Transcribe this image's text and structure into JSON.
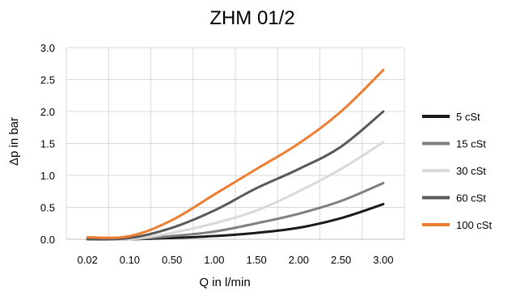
{
  "chart_data": {
    "type": "line",
    "title": "ZHM 01/2",
    "xlabel": "Q in l/min",
    "ylabel": "Δp in bar",
    "categories": [
      "0.02",
      "0.10",
      "0.50",
      "1.00",
      "1.50",
      "2.00",
      "2.50",
      "3.00"
    ],
    "y_ticks": [
      "0.0",
      "0.5",
      "1.0",
      "1.5",
      "2.0",
      "2.5",
      "3.0"
    ],
    "ylim": [
      0,
      3.0
    ],
    "grid": true,
    "legend_position": "right",
    "series": [
      {
        "name": "5 cSt",
        "color": "#1a1a1a",
        "values": [
          0.0,
          0.0,
          0.02,
          0.05,
          0.1,
          0.18,
          0.33,
          0.55
        ]
      },
      {
        "name": "15 cSt",
        "color": "#7f7f7f",
        "values": [
          0.0,
          0.0,
          0.05,
          0.12,
          0.25,
          0.4,
          0.6,
          0.88
        ]
      },
      {
        "name": "30 cSt",
        "color": "#d9d9d9",
        "values": [
          0.0,
          0.0,
          0.1,
          0.25,
          0.45,
          0.75,
          1.1,
          1.52
        ]
      },
      {
        "name": "60 cSt",
        "color": "#595959",
        "values": [
          0.0,
          0.02,
          0.18,
          0.45,
          0.8,
          1.1,
          1.45,
          2.0
        ]
      },
      {
        "name": "100 cSt",
        "color": "#ed7d31",
        "values": [
          0.03,
          0.05,
          0.3,
          0.7,
          1.1,
          1.5,
          2.0,
          2.65
        ]
      }
    ]
  }
}
